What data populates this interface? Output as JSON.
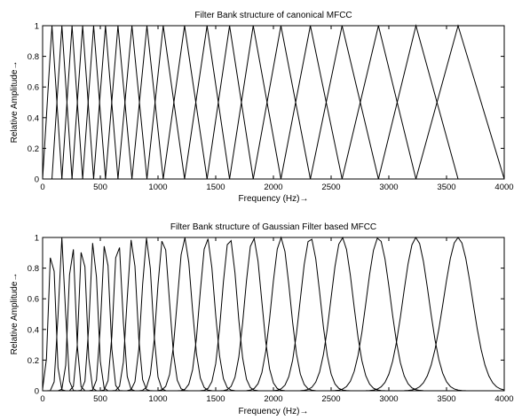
{
  "chart_data": [
    {
      "type": "line",
      "title": "Filter Bank structure of canonical MFCC",
      "xlabel": "Frequency (Hz)→",
      "ylabel": "Relative Amplitude→",
      "xlim": [
        0,
        4000
      ],
      "ylim": [
        0,
        1
      ],
      "xticks": [
        0,
        500,
        1000,
        1500,
        2000,
        2500,
        3000,
        3500,
        4000
      ],
      "yticks": [
        0,
        0.2,
        0.4,
        0.6,
        0.8,
        1
      ],
      "xtick_labels": [
        "0",
        "500",
        "1000",
        "1500",
        "2000",
        "2500",
        "3000",
        "3500",
        "4000"
      ],
      "ytick_labels": [
        "0",
        "0.2",
        "0.4",
        "0.6",
        "0.8",
        "1"
      ],
      "grid": false,
      "filter_shape": "triangular",
      "filter_edges_hz": [
        0,
        81,
        167,
        255,
        347,
        442,
        545,
        653,
        774,
        904,
        1045,
        1230,
        1425,
        1620,
        1825,
        2065,
        2320,
        2595,
        2910,
        3235,
        3600,
        4000
      ]
    },
    {
      "type": "line",
      "title": "Filter Bank structure of Gaussian Filter based MFCC",
      "xlabel": "Frequency (Hz)→",
      "ylabel": "Relative Amplitude→",
      "xlim": [
        0,
        4000
      ],
      "ylim": [
        0,
        1
      ],
      "xticks": [
        0,
        500,
        1000,
        1500,
        2000,
        2500,
        3000,
        3500,
        4000
      ],
      "yticks": [
        0,
        0.2,
        0.4,
        0.6,
        0.8,
        1
      ],
      "xtick_labels": [
        "0",
        "500",
        "1000",
        "1500",
        "2000",
        "2500",
        "3000",
        "3500",
        "4000"
      ],
      "ytick_labels": [
        "0",
        "0.2",
        "0.4",
        "0.6",
        "0.8",
        "1"
      ],
      "grid": false,
      "filter_shape": "gaussian",
      "filter_centers_hz": [
        0,
        81,
        167,
        255,
        347,
        442,
        545,
        653,
        774,
        904,
        1045,
        1230,
        1425,
        1620,
        1825,
        2065,
        2320,
        2595,
        2910,
        3235,
        3600,
        4000
      ]
    }
  ]
}
